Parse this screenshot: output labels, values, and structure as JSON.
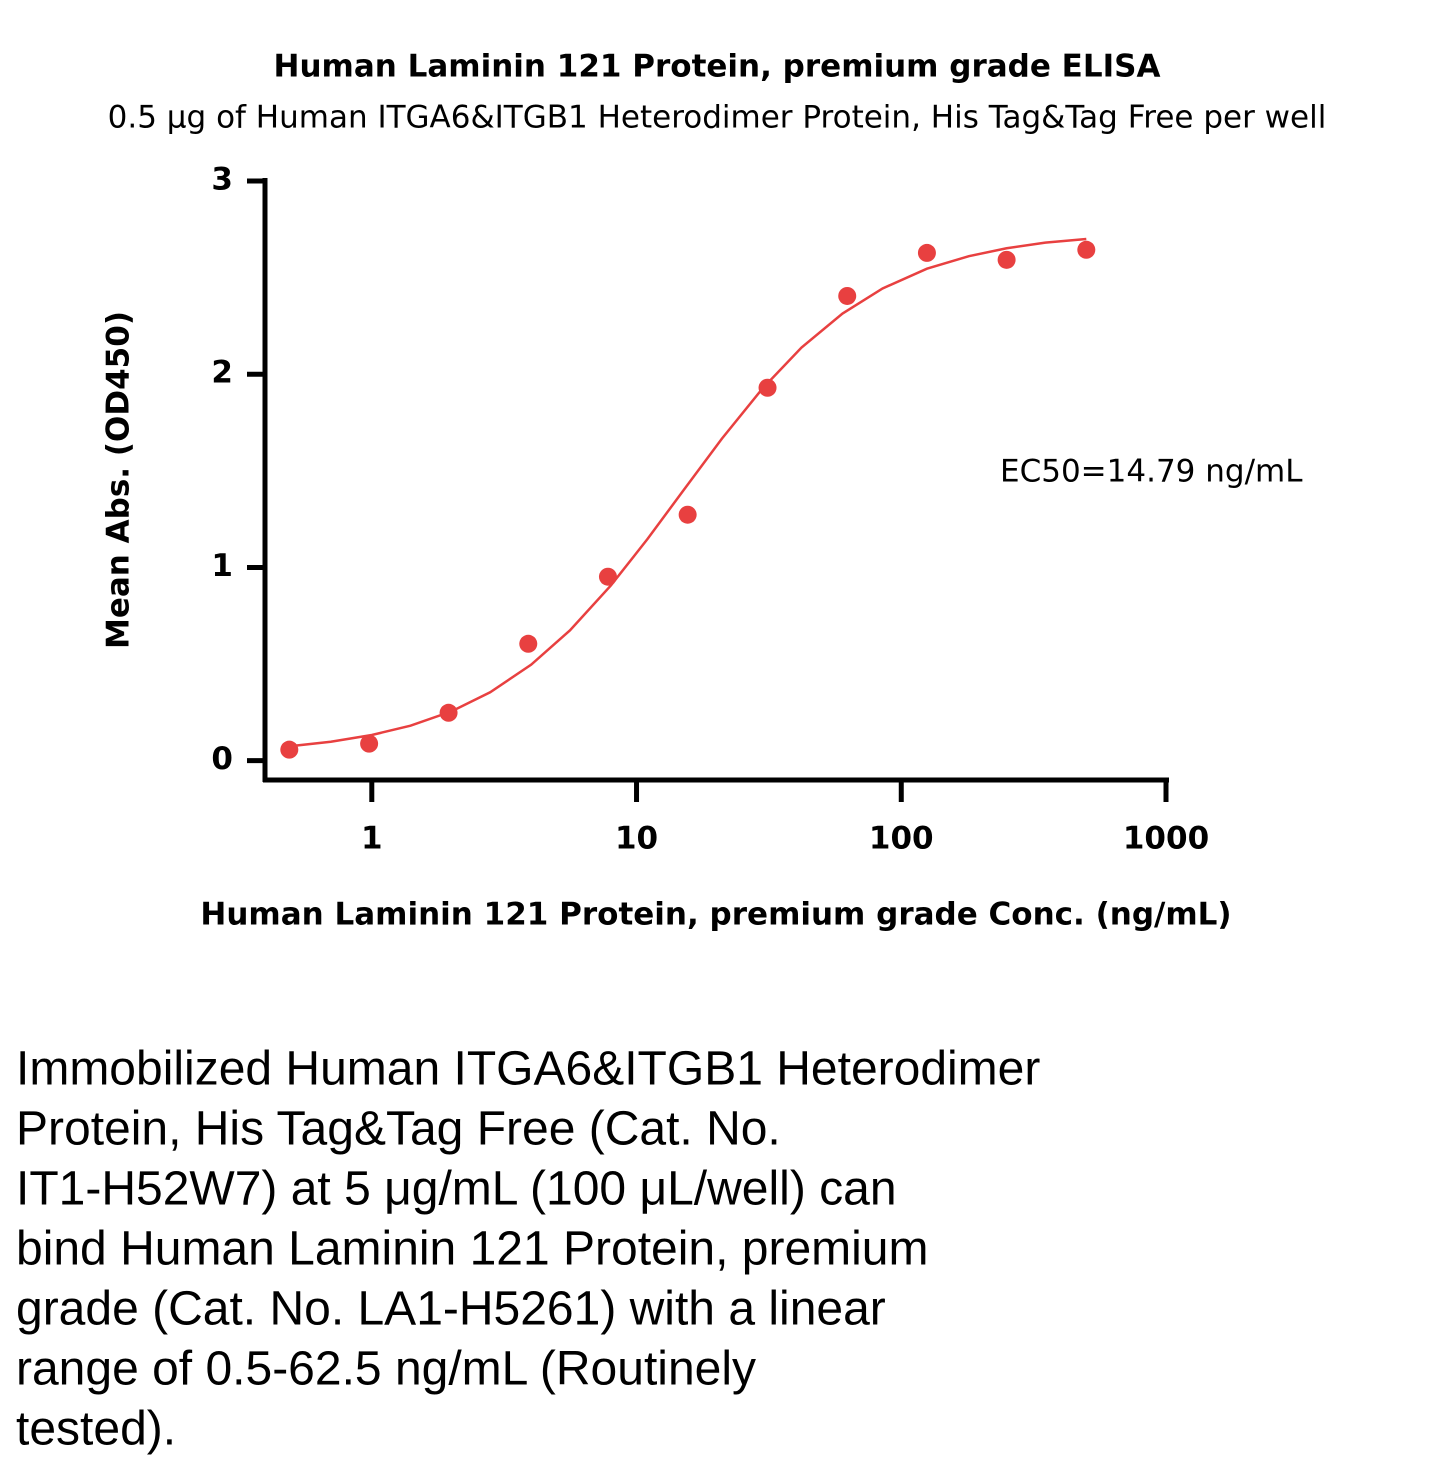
{
  "chart_data": {
    "type": "scatter",
    "title": "Human Laminin 121 Protein, premium grade ELISA",
    "subtitle": "0.5 μg of Human ITGA6&ITGB1 Heterodimer Protein, His Tag&Tag Free per well",
    "x_label": "Human Laminin 121 Protein, premium grade Conc. (ng/mL)",
    "y_label": "Mean Abs. (OD450)",
    "annotation": "EC50=14.79 ng/mL",
    "xscale": "log",
    "xlim": [
      0.395,
      1000
    ],
    "xticks": [
      1,
      10,
      100,
      1000
    ],
    "ylim": [
      -0.1,
      3
    ],
    "yticks": [
      0,
      1,
      2,
      3
    ],
    "grid": false,
    "series": [
      {
        "style": "markers",
        "color": "#e84040",
        "x": [
          0.488,
          0.977,
          1.95,
          3.9,
          7.8,
          15.6,
          31.25,
          62.5,
          125,
          250,
          500
        ],
        "values": [
          0.057,
          0.088,
          0.248,
          0.605,
          0.952,
          1.273,
          1.93,
          2.405,
          2.628,
          2.592,
          2.644
        ]
      },
      {
        "style": "line",
        "color": "#e84040",
        "x": [
          0.5,
          0.7,
          1,
          1.4,
          2,
          2.8,
          4,
          5.6,
          8,
          11,
          15,
          21,
          30,
          42,
          60,
          85,
          125,
          180,
          250,
          350,
          500
        ],
        "values": [
          0.076,
          0.098,
          0.133,
          0.181,
          0.255,
          0.354,
          0.497,
          0.674,
          0.907,
          1.147,
          1.397,
          1.666,
          1.928,
          2.138,
          2.314,
          2.444,
          2.546,
          2.611,
          2.652,
          2.681,
          2.7
        ]
      }
    ]
  },
  "caption": [
    "Immobilized Human ITGA6&ITGB1 Heterodimer",
    "Protein, His Tag&Tag Free (Cat. No.",
    "IT1-H52W7) at 5 μg/mL (100 μL/well) can",
    "bind Human Laminin 121 Protein, premium",
    "grade (Cat. No. LA1-H5261) with a linear",
    "range of 0.5-62.5 ng/mL (Routinely",
    "tested)."
  ]
}
